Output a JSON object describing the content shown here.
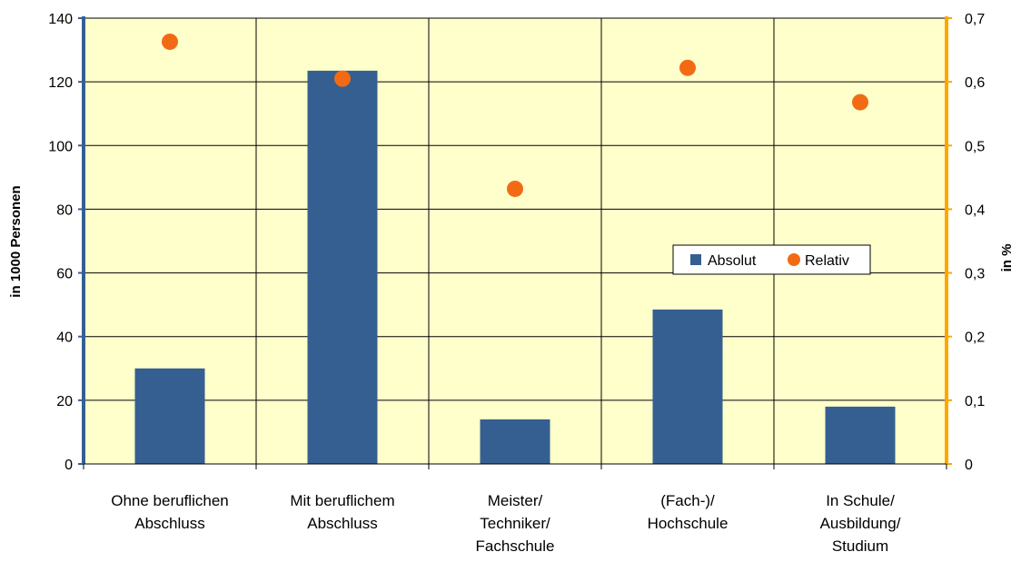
{
  "chart_data": {
    "type": "bar",
    "categories": [
      [
        "Ohne beruflichen",
        "Abschluss"
      ],
      [
        "Mit beruflichem",
        "Abschluss"
      ],
      [
        "Meister/",
        "Techniker/",
        "Fachschule"
      ],
      [
        "(Fach-)/",
        "Hochschule"
      ],
      [
        "In Schule/",
        "Ausbildung/",
        "Studium"
      ]
    ],
    "series": [
      {
        "name": "Absolut",
        "type": "bar",
        "axis": "left",
        "color": "#365F91",
        "values": [
          30,
          123.5,
          14,
          48.5,
          18
        ]
      },
      {
        "name": "Relativ",
        "type": "scatter",
        "axis": "right",
        "color": "#F26B14",
        "values": [
          0.663,
          0.605,
          0.432,
          0.622,
          0.568
        ]
      }
    ],
    "ylabel": "in 1000 Personen",
    "y2label": "in %",
    "ylim": [
      0,
      140
    ],
    "y2lim": [
      0,
      0.7
    ],
    "yticks": [
      "0",
      "20",
      "40",
      "60",
      "80",
      "100",
      "120",
      "140"
    ],
    "y2ticks": [
      "0",
      "0,1",
      "0,2",
      "0,3",
      "0,4",
      "0,5",
      "0,6",
      "0,7"
    ],
    "grid": true,
    "legend": "center-right",
    "plot_background": "#FFFFCC",
    "left_axis_color": "#365F91",
    "right_axis_color": "#FFA500"
  }
}
